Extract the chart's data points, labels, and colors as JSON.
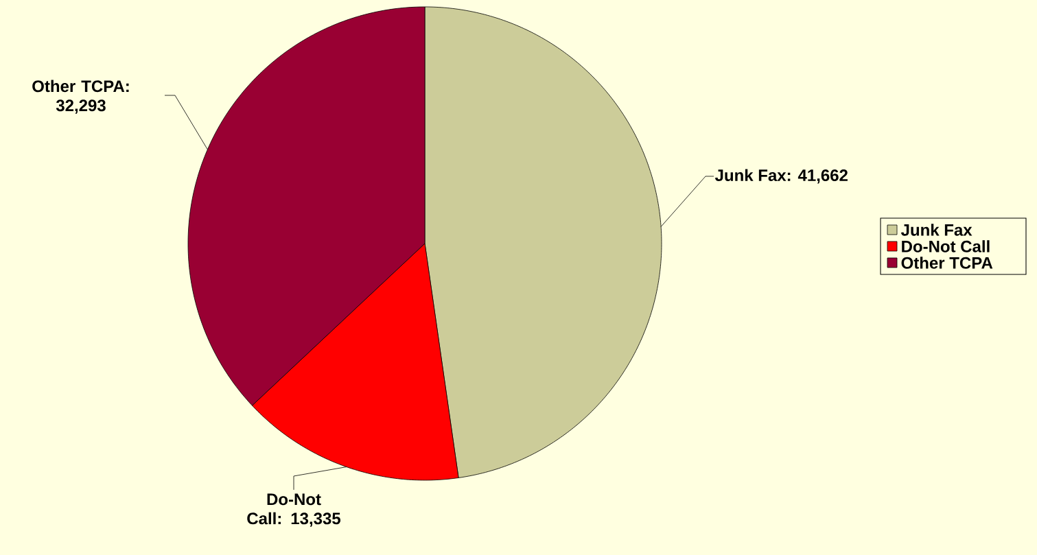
{
  "chart_data": {
    "type": "pie",
    "categories": [
      "Junk Fax",
      "Do-Not Call",
      "Other TCPA"
    ],
    "values": [
      41662,
      13335,
      32293
    ],
    "colors": [
      "#cccc99",
      "#ff0000",
      "#990033"
    ],
    "value_labels": [
      "Junk Fax: 41,662",
      "Do-Not Call: 13,335",
      "Other TCPA: 32,293"
    ],
    "legend": "right"
  }
}
